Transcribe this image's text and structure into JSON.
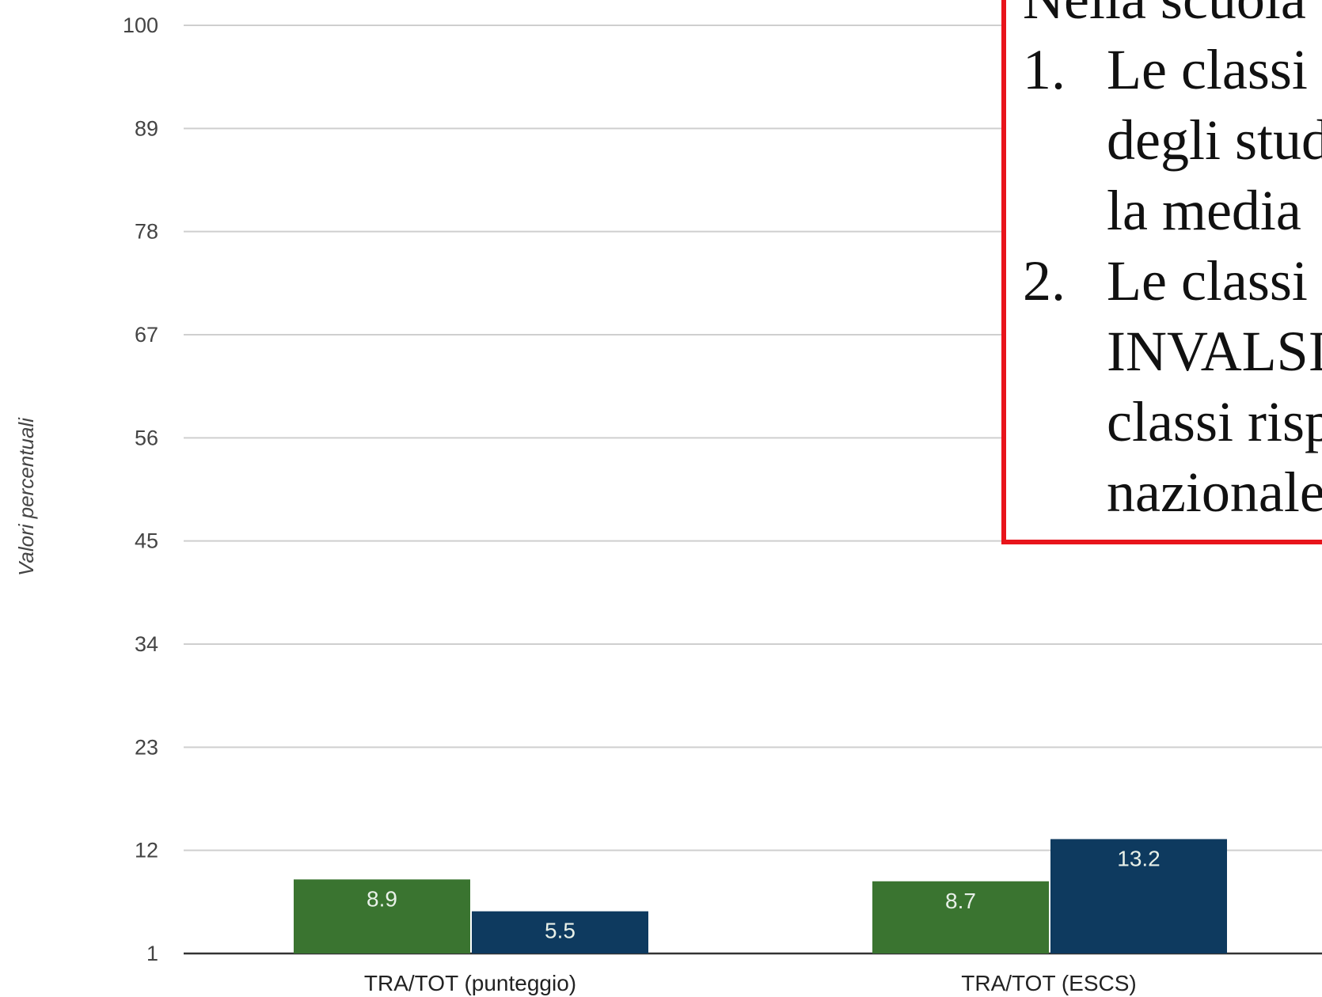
{
  "chart_data": {
    "type": "bar",
    "y_axis_label": "Valori percentuali",
    "categories": [
      "TRA/TOT (punteggio)",
      "TRA/TOT (ESCS)"
    ],
    "series": [
      {
        "color": "#3a7430",
        "values": [
          8.9,
          8.7
        ]
      },
      {
        "color": "#0e3a5f",
        "values": [
          5.5,
          13.2
        ]
      }
    ],
    "ylim": [
      1,
      100
    ],
    "yticks": [
      1,
      12,
      23,
      34,
      45,
      56,
      67,
      78,
      89,
      100
    ],
    "grid": true
  },
  "note": {
    "intro": "Nella scuola",
    "items": [
      {
        "number": "1.",
        "lines": [
          "Le classi",
          "degli stud",
          "la media"
        ]
      },
      {
        "number": "2.",
        "lines": [
          "Le classi",
          "INVALSI",
          "classi risp",
          "nazionale"
        ]
      }
    ]
  }
}
